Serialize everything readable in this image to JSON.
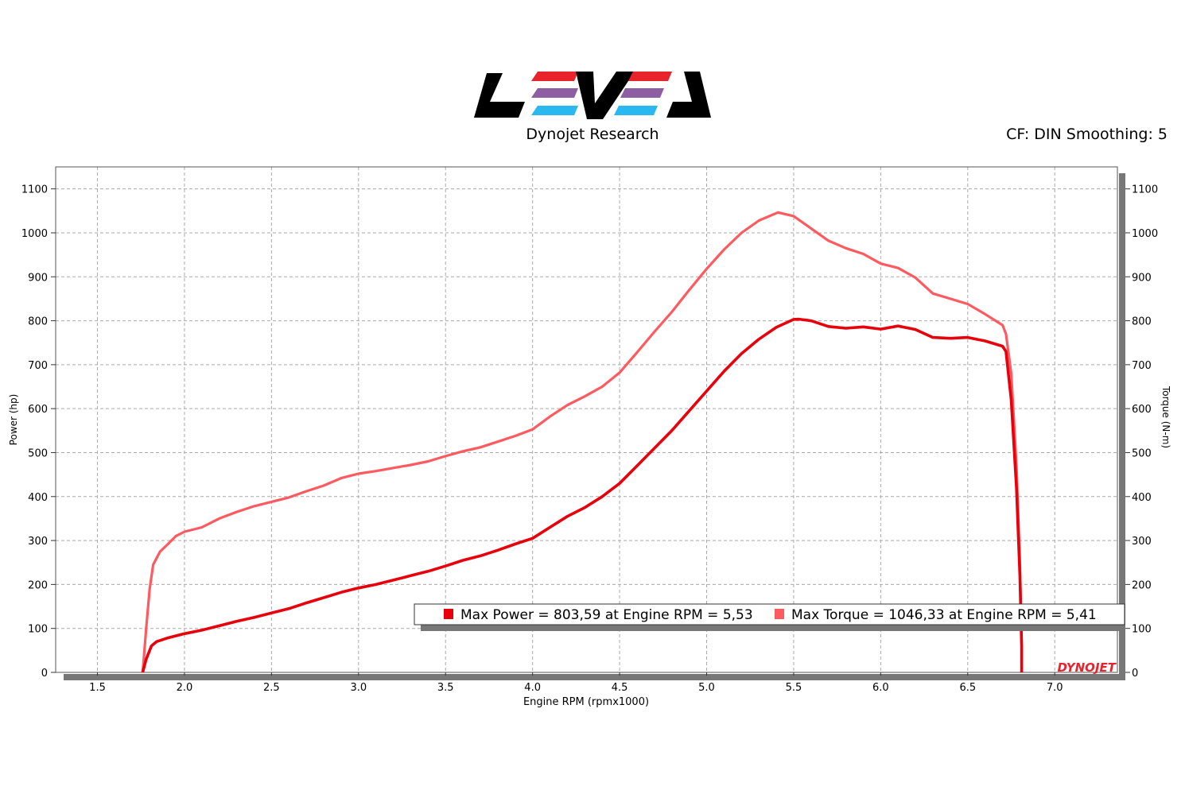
{
  "header": {
    "logo_name": "LEVEL",
    "company": "Dynojet Research",
    "settings": "CF: DIN Smoothing: 5"
  },
  "brand": {
    "red": "#e8232b",
    "purple": "#8e5ea2",
    "blue": "#29b9f0",
    "watermark": "DYNOJET"
  },
  "chart_data": {
    "type": "line",
    "xlabel": "Engine RPM (rpmx1000)",
    "ylabel_left": "Power (hp)",
    "ylabel_right": "Torque (N-m)",
    "xlim": [
      1.26,
      7.36
    ],
    "ylim": [
      0,
      1150
    ],
    "x_ticks": [
      1.5,
      2.0,
      2.5,
      3.0,
      3.5,
      4.0,
      4.5,
      5.0,
      5.5,
      6.0,
      6.5,
      7.0
    ],
    "x_tick_labels": [
      "1.5",
      "2.0",
      "2.5",
      "3.0",
      "3.5",
      "4.0",
      "4.5",
      "5.0",
      "5.5",
      "6.0",
      "6.5",
      "7.0"
    ],
    "y_ticks": [
      0,
      100,
      200,
      300,
      400,
      500,
      600,
      700,
      800,
      900,
      1000,
      1100
    ],
    "y_tick_labels": [
      "0",
      "100",
      "200",
      "300",
      "400",
      "500",
      "600",
      "700",
      "800",
      "900",
      "1000",
      "1100"
    ],
    "grid": true,
    "series": [
      {
        "name": "Power",
        "axis": "left",
        "color": "#e8000b",
        "points": [
          [
            1.76,
            0
          ],
          [
            1.78,
            30
          ],
          [
            1.81,
            60
          ],
          [
            1.84,
            70
          ],
          [
            1.9,
            78
          ],
          [
            2.0,
            88
          ],
          [
            2.1,
            96
          ],
          [
            2.2,
            106
          ],
          [
            2.3,
            116
          ],
          [
            2.4,
            125
          ],
          [
            2.5,
            135
          ],
          [
            2.6,
            145
          ],
          [
            2.7,
            158
          ],
          [
            2.8,
            170
          ],
          [
            2.9,
            182
          ],
          [
            3.0,
            192
          ],
          [
            3.1,
            200
          ],
          [
            3.2,
            210
          ],
          [
            3.3,
            220
          ],
          [
            3.4,
            230
          ],
          [
            3.5,
            242
          ],
          [
            3.6,
            255
          ],
          [
            3.7,
            265
          ],
          [
            3.8,
            278
          ],
          [
            3.9,
            292
          ],
          [
            4.0,
            305
          ],
          [
            4.1,
            330
          ],
          [
            4.2,
            355
          ],
          [
            4.3,
            375
          ],
          [
            4.4,
            400
          ],
          [
            4.5,
            430
          ],
          [
            4.6,
            470
          ],
          [
            4.7,
            510
          ],
          [
            4.8,
            550
          ],
          [
            4.9,
            595
          ],
          [
            5.0,
            640
          ],
          [
            5.1,
            685
          ],
          [
            5.2,
            725
          ],
          [
            5.3,
            758
          ],
          [
            5.4,
            785
          ],
          [
            5.5,
            803
          ],
          [
            5.53,
            803.59
          ],
          [
            5.6,
            800
          ],
          [
            5.7,
            787
          ],
          [
            5.8,
            783
          ],
          [
            5.9,
            786
          ],
          [
            6.0,
            781
          ],
          [
            6.1,
            788
          ],
          [
            6.2,
            780
          ],
          [
            6.3,
            762
          ],
          [
            6.4,
            760
          ],
          [
            6.5,
            762
          ],
          [
            6.6,
            754
          ],
          [
            6.7,
            742
          ],
          [
            6.72,
            730
          ],
          [
            6.75,
            620
          ],
          [
            6.78,
            420
          ],
          [
            6.8,
            220
          ],
          [
            6.81,
            60
          ],
          [
            6.81,
            0
          ]
        ]
      },
      {
        "name": "Torque",
        "axis": "right",
        "color": "#ff5a5f",
        "points": [
          [
            1.76,
            0
          ],
          [
            1.78,
            100
          ],
          [
            1.8,
            190
          ],
          [
            1.82,
            245
          ],
          [
            1.86,
            275
          ],
          [
            1.9,
            290
          ],
          [
            1.95,
            310
          ],
          [
            2.0,
            320
          ],
          [
            2.1,
            330
          ],
          [
            2.2,
            350
          ],
          [
            2.3,
            365
          ],
          [
            2.4,
            378
          ],
          [
            2.5,
            388
          ],
          [
            2.6,
            398
          ],
          [
            2.7,
            412
          ],
          [
            2.8,
            425
          ],
          [
            2.9,
            442
          ],
          [
            3.0,
            452
          ],
          [
            3.1,
            458
          ],
          [
            3.2,
            465
          ],
          [
            3.3,
            472
          ],
          [
            3.4,
            480
          ],
          [
            3.5,
            492
          ],
          [
            3.6,
            503
          ],
          [
            3.7,
            512
          ],
          [
            3.8,
            525
          ],
          [
            3.9,
            538
          ],
          [
            4.0,
            553
          ],
          [
            4.1,
            582
          ],
          [
            4.2,
            608
          ],
          [
            4.3,
            628
          ],
          [
            4.4,
            650
          ],
          [
            4.5,
            682
          ],
          [
            4.6,
            728
          ],
          [
            4.7,
            775
          ],
          [
            4.8,
            820
          ],
          [
            4.9,
            870
          ],
          [
            5.0,
            918
          ],
          [
            5.1,
            962
          ],
          [
            5.2,
            1000
          ],
          [
            5.3,
            1028
          ],
          [
            5.41,
            1046.33
          ],
          [
            5.5,
            1038
          ],
          [
            5.6,
            1010
          ],
          [
            5.7,
            982
          ],
          [
            5.8,
            965
          ],
          [
            5.9,
            952
          ],
          [
            6.0,
            930
          ],
          [
            6.1,
            920
          ],
          [
            6.2,
            898
          ],
          [
            6.3,
            862
          ],
          [
            6.4,
            850
          ],
          [
            6.5,
            838
          ],
          [
            6.6,
            815
          ],
          [
            6.7,
            790
          ],
          [
            6.72,
            770
          ],
          [
            6.75,
            680
          ],
          [
            6.78,
            470
          ],
          [
            6.8,
            250
          ],
          [
            6.81,
            60
          ],
          [
            6.81,
            0
          ]
        ]
      }
    ],
    "legend": {
      "power_label": "Max Power = 803,59 at Engine RPM = 5,53",
      "torque_label": "Max Torque = 1046,33 at Engine RPM = 5,41",
      "placement": "bottom-right"
    }
  }
}
